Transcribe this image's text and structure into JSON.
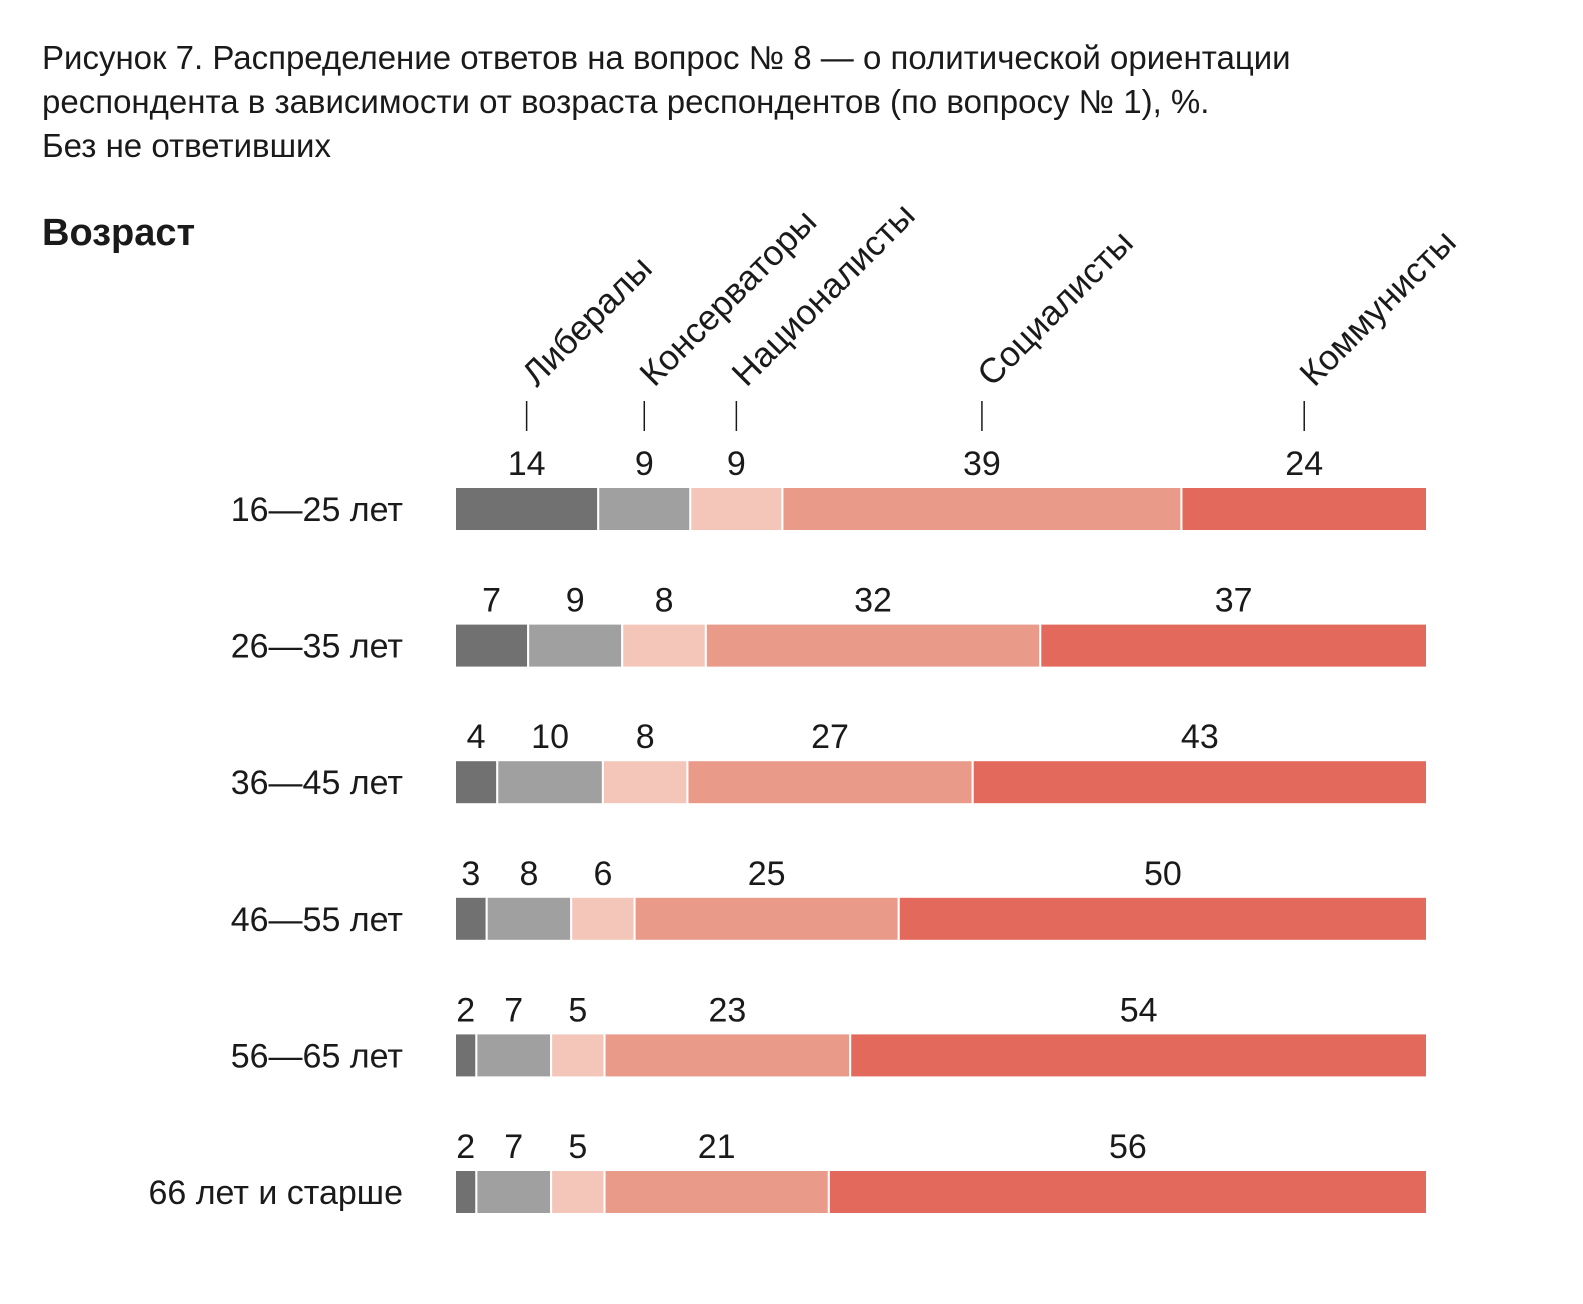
{
  "title_lines": [
    "Рисунок 7. Распределение ответов на вопрос № 8 — о политической ориентации",
    "респондента в зависимости от возраста респондентов (по вопросу № 1), %.",
    "Без не ответивших"
  ],
  "row_header": "Возраст",
  "colors": {
    "Либералы": "#717171",
    "Консерваторы": "#a0a0a0",
    "Националисты": "#f3c6b9",
    "Социалисты": "#ea9a89",
    "Коммунисты": "#e2695c"
  },
  "chart_data": {
    "type": "bar",
    "orientation": "horizontal",
    "stacked": true,
    "unit": "%",
    "categories": [
      "16—25 лет",
      "26—35 лет",
      "36—45 лет",
      "46—55 лет",
      "56—65 лет",
      "66 лет и старше"
    ],
    "series": [
      {
        "name": "Либералы",
        "values": [
          14,
          7,
          4,
          3,
          2,
          2
        ]
      },
      {
        "name": "Консерваторы",
        "values": [
          9,
          9,
          10,
          8,
          7,
          7
        ]
      },
      {
        "name": "Националисты",
        "values": [
          9,
          8,
          8,
          6,
          5,
          5
        ]
      },
      {
        "name": "Социалисты",
        "values": [
          39,
          32,
          27,
          25,
          23,
          21
        ]
      },
      {
        "name": "Коммунисты",
        "values": [
          24,
          37,
          43,
          50,
          54,
          56
        ]
      }
    ],
    "legend_placement": "top, rotated labels above first bar",
    "grid": false
  }
}
